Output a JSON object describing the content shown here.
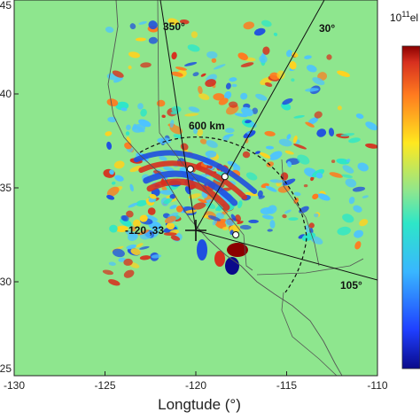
{
  "figure": {
    "x_axis_label": "Longtude (°)",
    "x_ticks": [
      "-130",
      "-125",
      "-120",
      "-115",
      "-110"
    ],
    "y_ticks": [
      "45",
      "40",
      "35",
      "30",
      "25"
    ],
    "colorbar_label_base": "10",
    "colorbar_label_exp": "11",
    "colorbar_label_unit": "el"
  },
  "annotations": {
    "ray_350": "350°",
    "ray_30": "30°",
    "ray_105": "105°",
    "distance": "600 km",
    "origin": "-120 ,33"
  },
  "colors": {
    "background_field": "#8ee68e",
    "positive": "#d7301f",
    "positive_strong": "#8b0000",
    "warm": "#ffd21f",
    "negative": "#1f4fe0",
    "negative_strong": "#0a0a8a",
    "weak": "#4dc3ff"
  },
  "chart_data": {
    "type": "heatmap",
    "xlabel": "Longtude (°)",
    "xlim": [
      -130,
      -110
    ],
    "ylim": [
      25,
      45
    ],
    "origin": {
      "lon": -120,
      "lat": 33
    },
    "rays_deg": [
      350,
      30,
      105
    ],
    "ring_radius_km": 600,
    "markers": [
      {
        "lon": -120.3,
        "lat": 36.0
      },
      {
        "lon": -118.4,
        "lat": 35.6
      },
      {
        "lon": -117.8,
        "lat": 32.5
      }
    ]
  }
}
